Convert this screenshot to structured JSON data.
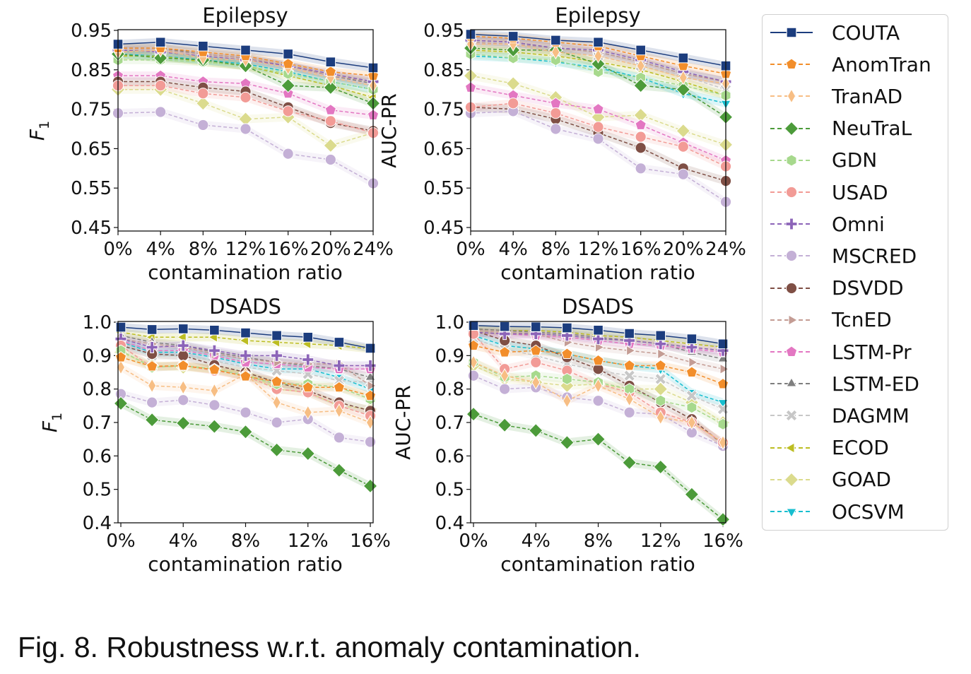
{
  "caption": "Fig. 8. Robustness w.r.t. anomaly contamination.",
  "series_styles": [
    {
      "name": "COUTA",
      "color": "#1c3d7e",
      "marker": "square",
      "dash": false
    },
    {
      "name": "AnomTran",
      "color": "#f28e2b",
      "marker": "pentagon",
      "dash": true
    },
    {
      "name": "TranAD",
      "color": "#f7be84",
      "marker": "thin_diamond",
      "dash": true
    },
    {
      "name": "NeuTraL",
      "color": "#4c9b3a",
      "marker": "diamond",
      "dash": true
    },
    {
      "name": "GDN",
      "color": "#a7d98d",
      "marker": "hexagon",
      "dash": true
    },
    {
      "name": "USAD",
      "color": "#f29b96",
      "marker": "circle",
      "dash": true
    },
    {
      "name": "Omni",
      "color": "#8c64b8",
      "marker": "plus",
      "dash": true
    },
    {
      "name": "MSCRED",
      "color": "#c4b0d6",
      "marker": "circle",
      "dash": true
    },
    {
      "name": "DSVDD",
      "color": "#7f4f45",
      "marker": "circle",
      "dash": true
    },
    {
      "name": "TcnED",
      "color": "#c49c94",
      "marker": "triangle_right",
      "dash": true
    },
    {
      "name": "LSTM-Pr",
      "color": "#e377c2",
      "marker": "pentagon",
      "dash": true
    },
    {
      "name": "LSTM-ED",
      "color": "#7f7f7f",
      "marker": "triangle_up",
      "dash": true
    },
    {
      "name": "DAGMM",
      "color": "#c7c7c7",
      "marker": "x",
      "dash": true
    },
    {
      "name": "ECOD",
      "color": "#bcbd22",
      "marker": "triangle_left",
      "dash": true
    },
    {
      "name": "GOAD",
      "color": "#dbdb8d",
      "marker": "diamond",
      "dash": true
    },
    {
      "name": "OCSVM",
      "color": "#17becf",
      "marker": "triangle_down",
      "dash": true
    }
  ],
  "chart_data": [
    {
      "type": "line",
      "title": "Epilepsy",
      "xlabel": "contamination ratio",
      "ylabel": "F1",
      "x": [
        0,
        4,
        8,
        12,
        16,
        20,
        24
      ],
      "xticks": [
        "0%",
        "4%",
        "8%",
        "12%",
        "16%",
        "20%",
        "24%"
      ],
      "ylim": [
        0.45,
        0.95
      ],
      "yticks": [
        "0.45",
        "0.55",
        "0.65",
        "0.75",
        "0.85",
        "0.95"
      ],
      "series": [
        {
          "name": "COUTA",
          "values": [
            0.915,
            0.92,
            0.91,
            0.9,
            0.89,
            0.87,
            0.855
          ]
        },
        {
          "name": "AnomTran",
          "values": [
            0.905,
            0.905,
            0.895,
            0.885,
            0.865,
            0.845,
            0.835
          ]
        },
        {
          "name": "TranAD",
          "values": [
            0.895,
            0.9,
            0.88,
            0.875,
            0.855,
            0.83,
            0.81
          ]
        },
        {
          "name": "NeuTraL",
          "values": [
            0.89,
            0.88,
            0.875,
            0.86,
            0.81,
            0.805,
            0.765
          ]
        },
        {
          "name": "GDN",
          "values": [
            0.875,
            0.875,
            0.87,
            0.86,
            0.84,
            0.82,
            0.8
          ]
        },
        {
          "name": "USAD",
          "values": [
            0.81,
            0.81,
            0.79,
            0.78,
            0.745,
            0.72,
            0.69
          ]
        },
        {
          "name": "Omni",
          "values": [
            0.9,
            0.895,
            0.885,
            0.875,
            0.86,
            0.84,
            0.82
          ]
        },
        {
          "name": "MSCRED",
          "values": [
            0.74,
            0.743,
            0.71,
            0.7,
            0.637,
            0.622,
            0.562
          ]
        },
        {
          "name": "DSVDD",
          "values": [
            0.82,
            0.82,
            0.805,
            0.795,
            0.755,
            0.715,
            0.695
          ]
        },
        {
          "name": "TcnED",
          "values": [
            0.9,
            0.9,
            0.89,
            0.88,
            0.86,
            0.835,
            0.82
          ]
        },
        {
          "name": "LSTM-Pr",
          "values": [
            0.835,
            0.835,
            0.82,
            0.815,
            0.79,
            0.748,
            0.735
          ]
        },
        {
          "name": "LSTM-ED",
          "values": [
            0.905,
            0.905,
            0.89,
            0.88,
            0.86,
            0.835,
            0.815
          ]
        },
        {
          "name": "DAGMM",
          "values": [
            0.9,
            0.895,
            0.885,
            0.875,
            0.855,
            0.83,
            0.81
          ]
        },
        {
          "name": "ECOD",
          "values": [
            0.885,
            0.885,
            0.87,
            0.86,
            0.835,
            0.81,
            0.78
          ]
        },
        {
          "name": "GOAD",
          "values": [
            0.8,
            0.8,
            0.765,
            0.725,
            0.73,
            0.658,
            0.69
          ]
        },
        {
          "name": "OCSVM",
          "values": [
            0.89,
            0.885,
            0.875,
            0.865,
            0.845,
            0.82,
            0.8
          ]
        }
      ]
    },
    {
      "type": "line",
      "title": "Epilepsy",
      "xlabel": "contamination ratio",
      "ylabel": "AUC-PR",
      "x": [
        0,
        4,
        8,
        12,
        16,
        20,
        24
      ],
      "xticks": [
        "0%",
        "4%",
        "8%",
        "12%",
        "16%",
        "20%",
        "24%"
      ],
      "ylim": [
        0.45,
        0.95
      ],
      "yticks": [
        "0.45",
        "0.55",
        "0.65",
        "0.75",
        "0.85",
        "0.95"
      ],
      "series": [
        {
          "name": "COUTA",
          "values": [
            0.94,
            0.935,
            0.925,
            0.92,
            0.9,
            0.88,
            0.86
          ]
        },
        {
          "name": "AnomTran",
          "values": [
            0.935,
            0.93,
            0.92,
            0.91,
            0.885,
            0.86,
            0.84
          ]
        },
        {
          "name": "TranAD",
          "values": [
            0.915,
            0.915,
            0.895,
            0.885,
            0.86,
            0.83,
            0.815
          ]
        },
        {
          "name": "NeuTraL",
          "values": [
            0.905,
            0.9,
            0.9,
            0.865,
            0.81,
            0.8,
            0.73
          ]
        },
        {
          "name": "GDN",
          "values": [
            0.89,
            0.88,
            0.875,
            0.845,
            0.83,
            0.81,
            0.785
          ]
        },
        {
          "name": "USAD",
          "values": [
            0.755,
            0.765,
            0.74,
            0.705,
            0.68,
            0.655,
            0.605
          ]
        },
        {
          "name": "Omni",
          "values": [
            0.925,
            0.92,
            0.905,
            0.9,
            0.875,
            0.845,
            0.82
          ]
        },
        {
          "name": "MSCRED",
          "values": [
            0.74,
            0.745,
            0.7,
            0.675,
            0.6,
            0.585,
            0.515
          ]
        },
        {
          "name": "DSVDD",
          "values": [
            0.755,
            0.75,
            0.725,
            0.69,
            0.652,
            0.6,
            0.568
          ]
        },
        {
          "name": "TcnED",
          "values": [
            0.92,
            0.915,
            0.905,
            0.895,
            0.87,
            0.84,
            0.82
          ]
        },
        {
          "name": "LSTM-Pr",
          "values": [
            0.805,
            0.785,
            0.765,
            0.75,
            0.71,
            0.665,
            0.62
          ]
        },
        {
          "name": "LSTM-ED",
          "values": [
            0.925,
            0.92,
            0.905,
            0.895,
            0.87,
            0.84,
            0.82
          ]
        },
        {
          "name": "DAGMM",
          "values": [
            0.92,
            0.91,
            0.9,
            0.885,
            0.86,
            0.835,
            0.8
          ]
        },
        {
          "name": "ECOD",
          "values": [
            0.9,
            0.895,
            0.885,
            0.87,
            0.85,
            0.82,
            0.785
          ]
        },
        {
          "name": "GOAD",
          "values": [
            0.835,
            0.815,
            0.78,
            0.73,
            0.735,
            0.695,
            0.66
          ]
        },
        {
          "name": "OCSVM",
          "values": [
            0.885,
            0.88,
            0.87,
            0.855,
            0.83,
            0.79,
            0.765
          ]
        }
      ]
    },
    {
      "type": "line",
      "title": "DSADS",
      "xlabel": "contamination ratio",
      "ylabel": "F1",
      "x": [
        0,
        2,
        4,
        6,
        8,
        10,
        12,
        14,
        16
      ],
      "xticks": [
        "0%",
        "4%",
        "8%",
        "12%",
        "16%"
      ],
      "xtick_values": [
        0,
        4,
        8,
        12,
        16
      ],
      "ylim": [
        0.4,
        1.0
      ],
      "yticks": [
        "0.4",
        "0.5",
        "0.6",
        "0.7",
        "0.8",
        "0.9",
        "1.0"
      ],
      "series": [
        {
          "name": "COUTA",
          "values": [
            0.985,
            0.978,
            0.98,
            0.976,
            0.968,
            0.96,
            0.955,
            0.94,
            0.922
          ]
        },
        {
          "name": "AnomTran",
          "values": [
            0.895,
            0.868,
            0.87,
            0.858,
            0.838,
            0.822,
            0.805,
            0.805,
            0.78
          ]
        },
        {
          "name": "TranAD",
          "values": [
            0.865,
            0.81,
            0.805,
            0.795,
            0.845,
            0.76,
            0.73,
            0.735,
            0.7
          ]
        },
        {
          "name": "NeuTraL",
          "values": [
            0.757,
            0.708,
            0.698,
            0.688,
            0.672,
            0.618,
            0.607,
            0.557,
            0.51
          ]
        },
        {
          "name": "GDN",
          "values": [
            0.915,
            0.865,
            0.87,
            0.86,
            0.84,
            0.815,
            0.815,
            0.805,
            0.77
          ]
        },
        {
          "name": "USAD",
          "values": [
            0.93,
            0.865,
            0.87,
            0.855,
            0.84,
            0.8,
            0.79,
            0.75,
            0.72
          ]
        },
        {
          "name": "Omni",
          "values": [
            0.95,
            0.925,
            0.93,
            0.915,
            0.9,
            0.9,
            0.888,
            0.87,
            0.87
          ]
        },
        {
          "name": "MSCRED",
          "values": [
            0.785,
            0.76,
            0.767,
            0.752,
            0.73,
            0.7,
            0.71,
            0.655,
            0.642
          ]
        },
        {
          "name": "DSVDD",
          "values": [
            0.93,
            0.905,
            0.9,
            0.872,
            0.85,
            0.82,
            0.795,
            0.76,
            0.735
          ]
        },
        {
          "name": "TcnED",
          "values": [
            0.95,
            0.935,
            0.925,
            0.905,
            0.89,
            0.88,
            0.875,
            0.875,
            0.81
          ]
        },
        {
          "name": "LSTM-Pr",
          "values": [
            0.945,
            0.915,
            0.915,
            0.9,
            0.88,
            0.875,
            0.865,
            0.86,
            0.86
          ]
        },
        {
          "name": "LSTM-ED",
          "values": [
            0.96,
            0.94,
            0.93,
            0.91,
            0.895,
            0.88,
            0.87,
            0.86,
            0.835
          ]
        },
        {
          "name": "DAGMM",
          "values": [
            0.94,
            0.9,
            0.9,
            0.885,
            0.865,
            0.855,
            0.845,
            0.825,
            0.82
          ]
        },
        {
          "name": "ECOD",
          "values": [
            0.97,
            0.955,
            0.955,
            0.955,
            0.945,
            0.94,
            0.935,
            0.93,
            0.92
          ]
        },
        {
          "name": "GOAD",
          "values": [
            0.91,
            0.87,
            0.865,
            0.86,
            0.85,
            0.8,
            0.79,
            0.75,
            0.74
          ]
        },
        {
          "name": "OCSVM",
          "values": [
            0.94,
            0.91,
            0.91,
            0.895,
            0.875,
            0.86,
            0.86,
            0.835,
            0.8
          ]
        }
      ]
    },
    {
      "type": "line",
      "title": "DSADS",
      "xlabel": "contamination ratio",
      "ylabel": "AUC-PR",
      "x": [
        0,
        2,
        4,
        6,
        8,
        10,
        12,
        14,
        16
      ],
      "xticks": [
        "0%",
        "4%",
        "8%",
        "12%",
        "16%"
      ],
      "xtick_values": [
        0,
        4,
        8,
        12,
        16
      ],
      "ylim": [
        0.4,
        1.0
      ],
      "yticks": [
        "0.4",
        "0.5",
        "0.6",
        "0.7",
        "0.8",
        "0.9",
        "1.0"
      ],
      "series": [
        {
          "name": "COUTA",
          "values": [
            0.99,
            0.987,
            0.986,
            0.983,
            0.976,
            0.966,
            0.96,
            0.95,
            0.935
          ]
        },
        {
          "name": "AnomTran",
          "values": [
            0.93,
            0.91,
            0.915,
            0.905,
            0.885,
            0.87,
            0.87,
            0.85,
            0.815
          ]
        },
        {
          "name": "TranAD",
          "values": [
            0.88,
            0.84,
            0.82,
            0.765,
            0.81,
            0.77,
            0.715,
            0.7,
            0.64
          ]
        },
        {
          "name": "NeuTraL",
          "values": [
            0.725,
            0.692,
            0.676,
            0.64,
            0.65,
            0.58,
            0.567,
            0.485,
            0.41
          ]
        },
        {
          "name": "GDN",
          "values": [
            0.88,
            0.835,
            0.84,
            0.83,
            0.82,
            0.8,
            0.765,
            0.745,
            0.695
          ]
        },
        {
          "name": "USAD",
          "values": [
            0.965,
            0.86,
            0.88,
            0.855,
            0.815,
            0.79,
            0.73,
            0.7,
            0.64
          ]
        },
        {
          "name": "Omni",
          "values": [
            0.97,
            0.965,
            0.965,
            0.96,
            0.95,
            0.945,
            0.935,
            0.925,
            0.915
          ]
        },
        {
          "name": "MSCRED",
          "values": [
            0.84,
            0.8,
            0.805,
            0.775,
            0.765,
            0.73,
            0.725,
            0.67,
            0.63
          ]
        },
        {
          "name": "DSVDD",
          "values": [
            0.975,
            0.945,
            0.93,
            0.895,
            0.86,
            0.81,
            0.76,
            0.71,
            0.635
          ]
        },
        {
          "name": "TcnED",
          "values": [
            0.975,
            0.97,
            0.965,
            0.94,
            0.925,
            0.915,
            0.905,
            0.88,
            0.86
          ]
        },
        {
          "name": "LSTM-Pr",
          "values": [
            0.97,
            0.965,
            0.96,
            0.955,
            0.945,
            0.935,
            0.93,
            0.92,
            0.91
          ]
        },
        {
          "name": "LSTM-ED",
          "values": [
            0.98,
            0.975,
            0.97,
            0.965,
            0.955,
            0.945,
            0.935,
            0.91,
            0.89
          ]
        },
        {
          "name": "DAGMM",
          "values": [
            0.95,
            0.92,
            0.9,
            0.875,
            0.855,
            0.84,
            0.83,
            0.78,
            0.74
          ]
        },
        {
          "name": "ECOD",
          "values": [
            0.98,
            0.975,
            0.975,
            0.97,
            0.96,
            0.955,
            0.945,
            0.935,
            0.925
          ]
        },
        {
          "name": "GOAD",
          "values": [
            0.87,
            0.83,
            0.82,
            0.81,
            0.815,
            0.8,
            0.8,
            0.76,
            0.7
          ]
        },
        {
          "name": "OCSVM",
          "values": [
            0.96,
            0.93,
            0.92,
            0.905,
            0.885,
            0.87,
            0.86,
            0.79,
            0.76
          ]
        }
      ]
    }
  ]
}
